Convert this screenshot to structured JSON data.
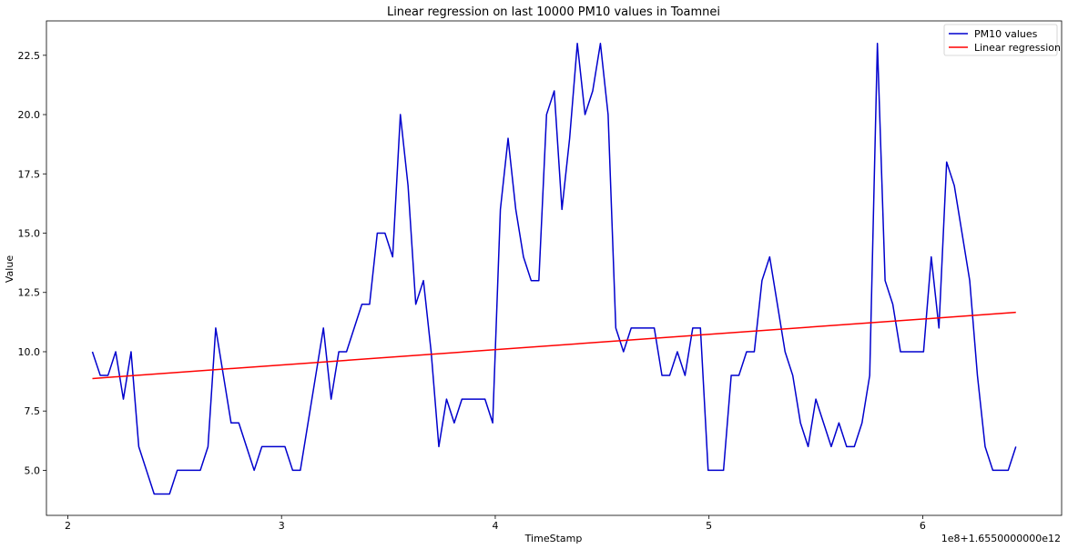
{
  "chart_data": {
    "type": "line",
    "title": "Linear regression on last 10000 PM10 values in Toamnei",
    "xlabel": "TimeStamp",
    "ylabel": "Value",
    "x_offset_label": "1e8+1.6550000000e12",
    "xlim": [
      1.9,
      6.65
    ],
    "ylim": [
      3.1,
      23.95
    ],
    "x_ticks": [
      2,
      3,
      4,
      5,
      6
    ],
    "y_ticks": [
      5.0,
      7.5,
      10.0,
      12.5,
      15.0,
      17.5,
      20.0,
      22.5
    ],
    "x_tick_labels": [
      "2",
      "3",
      "4",
      "5",
      "6"
    ],
    "y_tick_labels": [
      "5.0",
      "7.5",
      "10.0",
      "12.5",
      "15.0",
      "17.5",
      "20.0",
      "22.5"
    ],
    "grid": false,
    "legend_position": "top-right",
    "series": [
      {
        "name": "PM10 values",
        "color": "#0000cd",
        "x": [
          2.115,
          2.152,
          2.188,
          2.224,
          2.26,
          2.296,
          2.332,
          2.368,
          2.404,
          2.44,
          2.476,
          2.512,
          2.548,
          2.584,
          2.62,
          2.656,
          2.692,
          2.728,
          2.764,
          2.8,
          2.836,
          2.872,
          2.908,
          2.944,
          2.98,
          3.016,
          3.052,
          3.088,
          3.124,
          3.16,
          3.196,
          3.232,
          3.268,
          3.304,
          3.34,
          3.376,
          3.412,
          3.448,
          3.484,
          3.52,
          3.556,
          3.592,
          3.628,
          3.664,
          3.7,
          3.736,
          3.772,
          3.808,
          3.844,
          3.88,
          3.916,
          3.952,
          3.988,
          4.024,
          4.06,
          4.096,
          4.132,
          4.168,
          4.204,
          4.24,
          4.276,
          4.312,
          4.348,
          4.384,
          4.42,
          4.456,
          4.492,
          4.528,
          4.564,
          4.6,
          4.636,
          4.672,
          4.708,
          4.744,
          4.78,
          4.816,
          4.852,
          4.888,
          4.924,
          4.96,
          4.996,
          5.032,
          5.068,
          5.104,
          5.14,
          5.176,
          5.212,
          5.248,
          5.284,
          5.32,
          5.356,
          5.392,
          5.428,
          5.464,
          5.5,
          5.536,
          5.572,
          5.608,
          5.644,
          5.68,
          5.716,
          5.752,
          5.788,
          5.824,
          5.86,
          5.896,
          5.932,
          5.968,
          6.004,
          6.04,
          6.076,
          6.112,
          6.148,
          6.184,
          6.22,
          6.256,
          6.292,
          6.328,
          6.364,
          6.4,
          6.436
        ],
        "values": [
          10,
          9,
          9,
          10,
          8,
          10,
          6,
          5,
          4,
          4,
          4,
          5,
          5,
          5,
          5,
          6,
          11,
          9,
          7,
          7,
          6,
          5,
          6,
          6,
          6,
          6,
          5,
          5,
          7,
          9,
          11,
          8,
          10,
          10,
          11,
          12,
          12,
          15,
          15,
          14,
          20,
          17,
          12,
          13,
          10,
          6,
          8,
          7,
          8,
          8,
          8,
          8,
          7,
          16,
          19,
          16,
          14,
          13,
          13,
          20,
          21,
          16,
          19,
          23,
          20,
          21,
          23,
          20,
          11,
          10,
          11,
          11,
          11,
          11,
          9,
          9,
          10,
          9,
          11,
          11,
          5,
          5,
          5,
          9,
          9,
          10,
          10,
          13,
          14,
          12,
          10,
          9,
          7,
          6,
          8,
          7,
          6,
          7,
          6,
          6,
          7,
          9,
          23,
          13,
          12,
          10,
          10,
          10,
          10,
          14,
          11,
          18,
          17,
          15,
          13,
          9,
          6,
          5,
          5,
          5,
          6
        ]
      },
      {
        "name": "Linear regression",
        "color": "#ff0000",
        "x": [
          2.115,
          6.436
        ],
        "values": [
          8.87,
          11.66
        ]
      }
    ]
  }
}
